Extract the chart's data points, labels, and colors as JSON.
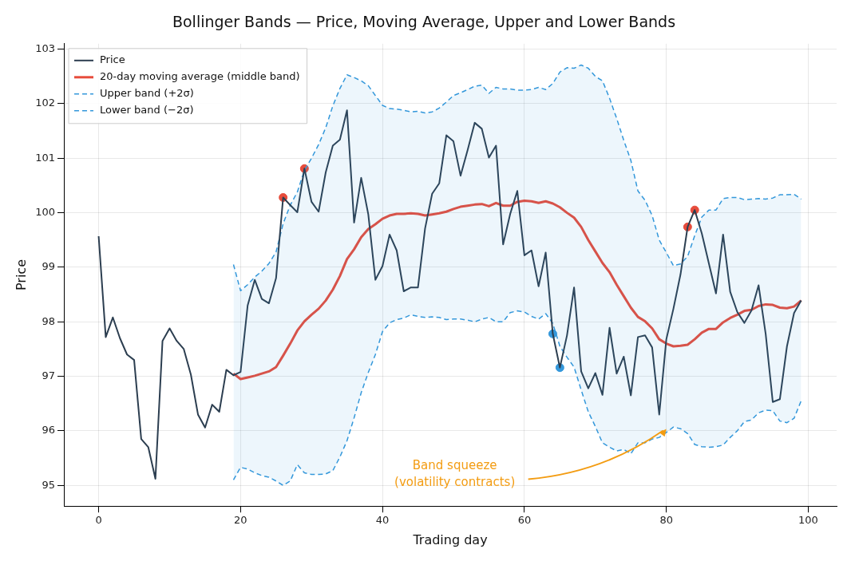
{
  "chart_data": {
    "type": "line",
    "title": "Bollinger Bands — Price, Moving Average, Upper and Lower Bands",
    "xlabel": "Trading day",
    "ylabel": "Price",
    "x": [
      0,
      1,
      2,
      3,
      4,
      5,
      6,
      7,
      8,
      9,
      10,
      11,
      12,
      13,
      14,
      15,
      16,
      17,
      18,
      19,
      20,
      21,
      22,
      23,
      24,
      25,
      26,
      27,
      28,
      29,
      30,
      31,
      32,
      33,
      34,
      35,
      36,
      37,
      38,
      39,
      40,
      41,
      42,
      43,
      44,
      45,
      46,
      47,
      48,
      49,
      50,
      51,
      52,
      53,
      54,
      55,
      56,
      57,
      58,
      59,
      60,
      61,
      62,
      63,
      64,
      65,
      66,
      67,
      68,
      69,
      70,
      71,
      72,
      73,
      74,
      75,
      76,
      77,
      78,
      79,
      80,
      81,
      82,
      83,
      84,
      85,
      86,
      87,
      88,
      89,
      90,
      91,
      92,
      93,
      94,
      95,
      96,
      97,
      98,
      99
    ],
    "series": [
      {
        "name": "Price",
        "color": "#2c3e50",
        "line_style": "solid",
        "values": [
          99.57,
          97.72,
          98.08,
          97.7,
          97.4,
          97.3,
          95.85,
          95.7,
          95.12,
          97.65,
          97.88,
          97.65,
          97.5,
          97.03,
          96.3,
          96.06,
          96.48,
          96.35,
          97.12,
          97.02,
          97.08,
          98.3,
          98.77,
          98.42,
          98.34,
          98.8,
          100.28,
          100.14,
          100.01,
          100.81,
          100.2,
          100.02,
          100.74,
          101.23,
          101.34,
          101.88,
          99.82,
          100.64,
          99.97,
          98.77,
          99.02,
          99.6,
          99.31,
          98.56,
          98.63,
          98.63,
          99.71,
          100.35,
          100.54,
          101.42,
          101.31,
          100.68,
          101.15,
          101.65,
          101.54,
          101.01,
          101.23,
          99.42,
          99.98,
          100.4,
          99.22,
          99.31,
          98.65,
          99.27,
          97.78,
          97.16,
          97.75,
          98.63,
          97.09,
          96.78,
          97.06,
          96.66,
          97.89,
          97.05,
          97.36,
          96.65,
          97.72,
          97.75,
          97.53,
          96.3,
          97.68,
          98.24,
          98.87,
          99.74,
          100.05,
          99.62,
          99.07,
          98.52,
          99.6,
          98.55,
          98.18,
          97.98,
          98.21,
          98.67,
          97.78,
          96.53,
          96.58,
          97.55,
          98.16,
          98.39
        ]
      },
      {
        "name": "20-day moving average (middle band)",
        "color": "#e74c3c",
        "line_style": "solid",
        "lower": [
          null,
          null,
          null,
          null,
          null,
          null,
          null,
          null,
          null,
          null,
          null,
          null,
          null,
          null,
          null,
          null,
          null,
          null,
          null,
          95.1,
          95.33,
          95.3,
          95.23,
          95.18,
          95.15,
          95.08,
          95.0,
          95.08,
          95.38,
          95.23,
          95.2,
          95.2,
          95.21,
          95.27,
          95.52,
          95.82,
          96.24,
          96.7,
          97.07,
          97.4,
          97.82,
          97.98,
          98.04,
          98.07,
          98.13,
          98.1,
          98.08,
          98.09,
          98.08,
          98.04,
          98.05,
          98.05,
          98.03,
          98.0,
          98.05,
          98.08,
          98.0,
          98.0,
          98.17,
          98.2,
          98.18,
          98.1,
          98.05,
          98.15,
          97.97,
          97.55,
          97.35,
          97.17,
          96.75,
          96.35,
          96.08,
          95.78,
          95.7,
          95.63,
          95.66,
          95.58,
          95.78,
          95.78,
          95.85,
          95.88,
          95.97,
          96.07,
          96.04,
          95.95,
          95.75,
          95.71,
          95.7,
          95.71,
          95.74,
          95.88,
          96.0,
          96.17,
          96.2,
          96.33,
          96.38,
          96.37,
          96.18,
          96.15,
          96.23,
          96.55
        ],
        "upper": [
          null,
          null,
          null,
          null,
          null,
          null,
          null,
          null,
          null,
          null,
          null,
          null,
          null,
          null,
          null,
          null,
          null,
          null,
          null,
          99.05,
          98.57,
          98.68,
          98.82,
          98.93,
          99.07,
          99.28,
          99.8,
          100.14,
          100.38,
          100.78,
          101.0,
          101.25,
          101.56,
          101.96,
          102.28,
          102.53,
          102.48,
          102.42,
          102.33,
          102.15,
          101.97,
          101.91,
          101.9,
          101.88,
          101.85,
          101.86,
          101.83,
          101.85,
          101.92,
          102.03,
          102.15,
          102.2,
          102.26,
          102.32,
          102.34,
          102.19,
          102.3,
          102.27,
          102.27,
          102.25,
          102.25,
          102.26,
          102.3,
          102.26,
          102.37,
          102.58,
          102.66,
          102.65,
          102.71,
          102.65,
          102.5,
          102.42,
          102.1,
          101.73,
          101.33,
          100.96,
          100.4,
          100.23,
          99.95,
          99.5,
          99.27,
          99.03,
          99.06,
          99.2,
          99.58,
          99.92,
          100.05,
          100.05,
          100.26,
          100.28,
          100.28,
          100.24,
          100.25,
          100.26,
          100.25,
          100.27,
          100.33,
          100.33,
          100.34,
          100.25
        ],
        "values": [
          null,
          null,
          null,
          null,
          null,
          null,
          null,
          null,
          null,
          null,
          null,
          null,
          null,
          null,
          null,
          null,
          null,
          null,
          null,
          97.05,
          96.95,
          96.98,
          97.01,
          97.05,
          97.09,
          97.17,
          97.38,
          97.6,
          97.84,
          98.01,
          98.13,
          98.24,
          98.39,
          98.59,
          98.84,
          99.15,
          99.33,
          99.55,
          99.7,
          99.79,
          99.89,
          99.95,
          99.98,
          99.98,
          99.99,
          99.98,
          99.95,
          99.97,
          99.99,
          100.02,
          100.07,
          100.11,
          100.13,
          100.15,
          100.16,
          100.12,
          100.18,
          100.13,
          100.13,
          100.2,
          100.22,
          100.21,
          100.18,
          100.21,
          100.17,
          100.1,
          100.0,
          99.91,
          99.74,
          99.5,
          99.29,
          99.08,
          98.91,
          98.68,
          98.47,
          98.26,
          98.09,
          98.01,
          97.88,
          97.68,
          97.6,
          97.55,
          97.56,
          97.58,
          97.68,
          97.8,
          97.87,
          97.87,
          97.99,
          98.07,
          98.13,
          98.2,
          98.22,
          98.29,
          98.32,
          98.31,
          98.26,
          98.25,
          98.28,
          98.39
        ]
      },
      {
        "name": "Upper band (+2σ)",
        "color": "#3498db",
        "line_style": "dashed",
        "values": [
          null,
          null,
          null,
          null,
          null,
          null,
          null,
          null,
          null,
          null,
          null,
          null,
          null,
          null,
          null,
          null,
          null,
          null,
          null,
          99.05,
          98.57,
          98.68,
          98.82,
          98.93,
          99.07,
          99.28,
          99.8,
          100.14,
          100.38,
          100.78,
          101.0,
          101.25,
          101.56,
          101.96,
          102.28,
          102.53,
          102.48,
          102.42,
          102.33,
          102.15,
          101.97,
          101.91,
          101.9,
          101.88,
          101.85,
          101.86,
          101.83,
          101.85,
          101.92,
          102.03,
          102.15,
          102.2,
          102.26,
          102.32,
          102.34,
          102.19,
          102.3,
          102.27,
          102.27,
          102.25,
          102.25,
          102.26,
          102.3,
          102.26,
          102.37,
          102.58,
          102.66,
          102.65,
          102.71,
          102.65,
          102.5,
          102.42,
          102.1,
          101.73,
          101.33,
          100.96,
          100.4,
          100.23,
          99.95,
          99.5,
          99.27,
          99.03,
          99.06,
          99.2,
          99.58,
          99.92,
          100.05,
          100.05,
          100.26,
          100.28,
          100.28,
          100.24,
          100.25,
          100.26,
          100.25,
          100.27,
          100.33,
          100.33,
          100.34,
          100.25
        ]
      },
      {
        "name": "Lower band (−2σ)",
        "color": "#3498db",
        "line_style": "dashed",
        "values": [
          null,
          null,
          null,
          null,
          null,
          null,
          null,
          null,
          null,
          null,
          null,
          null,
          null,
          null,
          null,
          null,
          null,
          null,
          null,
          95.1,
          95.33,
          95.3,
          95.23,
          95.18,
          95.15,
          95.08,
          95.0,
          95.08,
          95.38,
          95.23,
          95.2,
          95.2,
          95.21,
          95.27,
          95.52,
          95.82,
          96.24,
          96.7,
          97.07,
          97.4,
          97.82,
          97.98,
          98.04,
          98.07,
          98.13,
          98.1,
          98.08,
          98.09,
          98.08,
          98.04,
          98.05,
          98.05,
          98.03,
          98.0,
          98.05,
          98.08,
          98.0,
          98.0,
          98.17,
          98.2,
          98.18,
          98.1,
          98.05,
          98.15,
          97.97,
          97.55,
          97.35,
          97.17,
          96.75,
          96.35,
          96.08,
          95.78,
          95.7,
          95.63,
          95.66,
          95.58,
          95.78,
          95.78,
          95.85,
          95.88,
          95.97,
          96.07,
          96.04,
          95.95,
          95.75,
          95.71,
          95.7,
          95.71,
          95.74,
          95.88,
          96.0,
          96.17,
          96.2,
          96.33,
          96.38,
          96.37,
          96.18,
          96.15,
          96.23,
          96.55
        ]
      },
      {
        "type": "scatter",
        "color": "#e74c3c",
        "marker": "circle",
        "x": [
          26,
          29,
          83,
          84
        ],
        "values": [
          100.28,
          100.81,
          99.74,
          100.05
        ]
      },
      {
        "type": "scatter",
        "color": "#3498db",
        "marker": "circle",
        "x": [
          64,
          65
        ],
        "values": [
          97.78,
          97.16
        ]
      }
    ],
    "xlim": [
      -4.9,
      104
    ],
    "ylim": [
      94.62,
      103.1
    ],
    "xticks": [
      0,
      20,
      40,
      60,
      80,
      100
    ],
    "yticks": [
      95,
      96,
      97,
      98,
      99,
      100,
      101,
      102,
      103
    ],
    "grid": true,
    "legend": "top left",
    "annotations": [
      {
        "text": "Band squeeze\n(volatility contracts)",
        "x": 80,
        "y": 96.05
      }
    ]
  }
}
